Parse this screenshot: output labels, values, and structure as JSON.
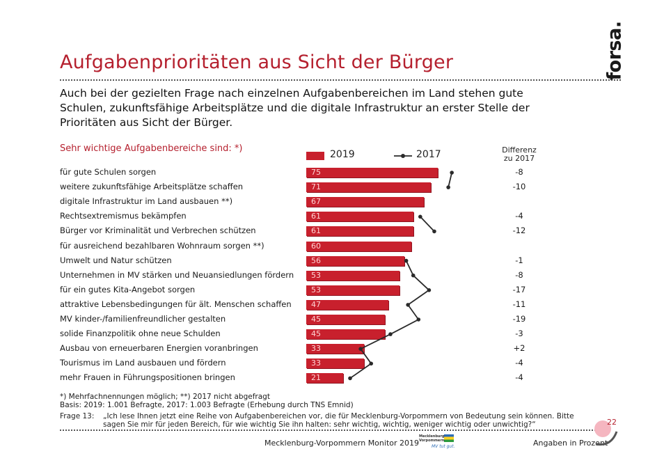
{
  "title": "Aufgabenprioritäten aus Sicht der Bürger",
  "logo_text": "forsa.",
  "intro": "Auch bei der gezielten Frage nach einzelnen Aufgabenbereichen im Land stehen gute Schulen, zukunftsfähige Arbeitsplätze und die digitale Infrastruktur an erster Stelle der Prioritäten aus Sicht der Bürger.",
  "colors": {
    "accent": "#b5202e",
    "bar": "#c8202d",
    "line": "#2a2a2a"
  },
  "chart_data": {
    "type": "bar",
    "orientation": "horizontal",
    "subtitle": "Sehr wichtige Aufgabenbereiche sind: *)",
    "diff_header": [
      "Differenz",
      "zu 2017"
    ],
    "legend": {
      "series_2019": "2019",
      "series_2017": "2017"
    },
    "categories": [
      "für gute Schulen sorgen",
      "weitere zukunftsfähige Arbeitsplätze schaffen",
      "digitale Infrastruktur im Land ausbauen **)",
      "Rechtsextremismus bekämpfen",
      "Bürger vor Kriminalität und Verbrechen schützen",
      "für ausreichend bezahlbaren Wohnraum sorgen **)",
      "Umwelt und Natur schützen",
      "Unternehmen in MV stärken und Neuansiedlungen fördern",
      "für ein gutes Kita-Angebot sorgen",
      "attraktive Lebensbedingungen für ält. Menschen schaffen",
      "MV kinder-/familienfreundlicher gestalten",
      "solide Finanzpolitik ohne neue Schulden",
      "Ausbau von erneuerbaren Energien voranbringen",
      "Tourismus im Land ausbauen und fördern",
      "mehr Frauen in Führungspositionen bringen"
    ],
    "series": [
      {
        "name": "2019",
        "values": [
          75,
          71,
          67,
          61,
          61,
          60,
          56,
          53,
          53,
          47,
          45,
          45,
          33,
          33,
          21
        ]
      },
      {
        "name": "2017",
        "values": [
          83,
          81,
          null,
          65,
          73,
          null,
          57,
          61,
          70,
          58,
          64,
          48,
          31,
          37,
          25
        ]
      }
    ],
    "differences": [
      "-8",
      "-10",
      "",
      "-4",
      "-12",
      "",
      "-1",
      "-8",
      "-17",
      "-11",
      "-19",
      "-3",
      "+2",
      "-4",
      "-4"
    ],
    "xlim": [
      0,
      100
    ]
  },
  "footnotes": {
    "note1": "*) Mehrfachnennungen möglich; **) 2017 nicht abgefragt",
    "basis": "Basis: 2019: 1.001 Befragte, 2017: 1.003 Befragte (Erhebung durch TNS Emnid)",
    "frage_label": "Frage 13:",
    "frage_text": "„Ich lese Ihnen jetzt eine Reihe von Aufgabenbereichen vor, die für Mecklenburg-Vorpommern von Bedeutung sein können. Bitte sagen Sie mir für jeden Bereich, für wie wichtig Sie ihn halten: sehr wichtig, wichtig, weniger wichtig oder unwichtig?“"
  },
  "footer": {
    "monitor": "Mecklenburg-Vorpommern Monitor 2019",
    "mv_logo_line1": "Mecklenburg",
    "mv_logo_line2": "Vorpommern",
    "mv_logo_slogan": "MV tut gut.",
    "unit": "Angaben in Prozent",
    "page": "22"
  }
}
